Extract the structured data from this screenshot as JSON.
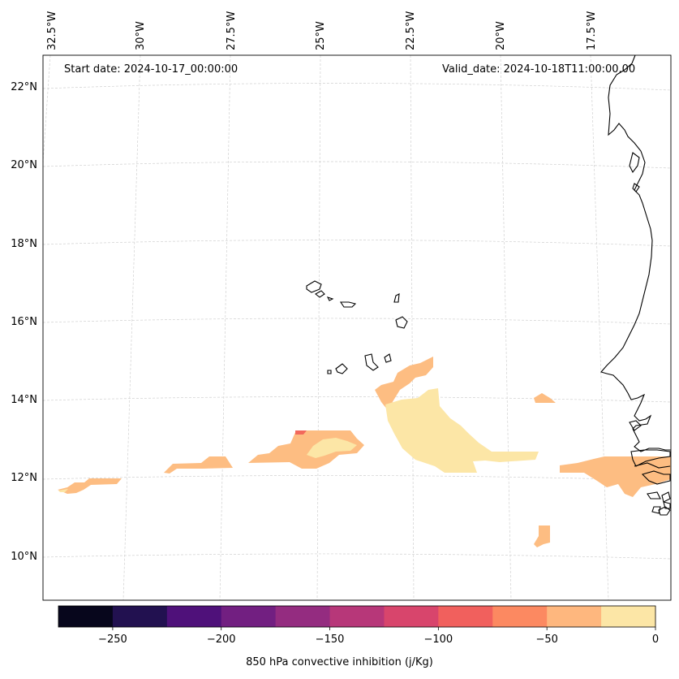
{
  "map": {
    "start_date_text": "Start date: 2024-10-17_00:00:00",
    "valid_date_text": "Valid_date: 2024-10-18T11:00:00.00",
    "lon_labels": [
      "32.5°W",
      "30°W",
      "27.5°W",
      "25°W",
      "22.5°W",
      "20°W",
      "17.5°W"
    ],
    "lat_labels": [
      "22°N",
      "20°N",
      "18°N",
      "16°N",
      "14°N",
      "12°N",
      "10°N"
    ],
    "colors": {
      "grid": "#cccccc",
      "coastline": "#000000",
      "cin_0_to_m25": "#fce6a6",
      "cin_m25_to_m50": "#fdbd82",
      "cin_m50_to_m75": "#fb9366",
      "cin_m75_to_m100": "#f2685b"
    }
  },
  "colorbar": {
    "label": "850 hPa convective inhibition (j/Kg)",
    "tick_labels": [
      "−250",
      "−200",
      "−150",
      "−100",
      "−50",
      "0"
    ],
    "range": [
      -275,
      0
    ],
    "bin_edges": [
      -275,
      -250,
      -225,
      -200,
      -175,
      -150,
      -125,
      -100,
      -75,
      -50,
      -25,
      0
    ],
    "colors": [
      "#07061c",
      "#221150",
      "#4f117a",
      "#721f81",
      "#942c80",
      "#b73779",
      "#d8456c",
      "#f1605d",
      "#fc8961",
      "#feb77e",
      "#fce6a6"
    ]
  }
}
